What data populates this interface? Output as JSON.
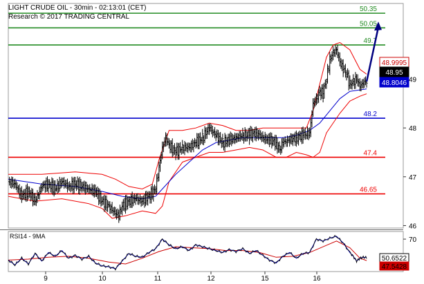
{
  "header": {
    "title": "LIGHT CRUDE OIL - 30min - 02:13:01 (CET)",
    "research": "Research © 2017 TRADING CENTRAL"
  },
  "chart_data": {
    "type": "line",
    "x_ticks": [
      "9",
      "10",
      "11",
      "12",
      "15",
      "16"
    ],
    "price_axis": {
      "ylim": [
        45.95,
        50.55
      ],
      "ticks": [
        "49",
        "48",
        "47",
        "46"
      ]
    },
    "levels": [
      {
        "label": "50.35",
        "value": 50.35,
        "color": "#228b22"
      },
      {
        "label": "50.05",
        "value": 50.05,
        "color": "#228b22"
      },
      {
        "label": "49.7",
        "value": 49.7,
        "color": "#228b22"
      },
      {
        "label": "48.2",
        "value": 48.2,
        "color": "#0000cc"
      },
      {
        "label": "47.4",
        "value": 47.4,
        "color": "#ee0000"
      },
      {
        "label": "46.65",
        "value": 46.65,
        "color": "#ee0000"
      }
    ],
    "price_tags": [
      {
        "label": "48.9995",
        "value": 48.9995,
        "bg": "#ffffff",
        "fg": "#cc0000",
        "border": "#cc0000"
      },
      {
        "label": "48.95",
        "value": 48.95,
        "bg": "#000000",
        "fg": "#ffffff",
        "border": "#000000"
      },
      {
        "label": "48.8046",
        "value": 48.8046,
        "bg": "#0000cc",
        "fg": "#ffffff",
        "border": "#0000cc"
      }
    ],
    "price_series": [
      [
        0,
        46.9
      ],
      [
        4,
        46.85
      ],
      [
        8,
        46.6
      ],
      [
        12,
        46.7
      ],
      [
        16,
        46.5
      ],
      [
        20,
        46.8
      ],
      [
        24,
        46.85
      ],
      [
        28,
        46.75
      ],
      [
        32,
        46.9
      ],
      [
        36,
        46.8
      ],
      [
        40,
        46.85
      ],
      [
        44,
        46.8
      ],
      [
        48,
        46.75
      ],
      [
        52,
        46.7
      ],
      [
        56,
        46.5
      ],
      [
        60,
        46.4
      ],
      [
        64,
        46.25
      ],
      [
        66,
        46.2
      ],
      [
        68,
        46.4
      ],
      [
        72,
        46.5
      ],
      [
        76,
        46.55
      ],
      [
        80,
        46.5
      ],
      [
        84,
        46.6
      ],
      [
        88,
        46.75
      ],
      [
        90,
        47.2
      ],
      [
        92,
        47.6
      ],
      [
        94,
        47.8
      ],
      [
        96,
        47.65
      ],
      [
        100,
        47.5
      ],
      [
        104,
        47.6
      ],
      [
        108,
        47.6
      ],
      [
        112,
        47.7
      ],
      [
        116,
        47.8
      ],
      [
        120,
        48.0
      ],
      [
        124,
        47.85
      ],
      [
        128,
        47.7
      ],
      [
        132,
        47.75
      ],
      [
        136,
        47.8
      ],
      [
        140,
        47.85
      ],
      [
        144,
        47.85
      ],
      [
        148,
        47.9
      ],
      [
        152,
        47.8
      ],
      [
        156,
        47.75
      ],
      [
        160,
        47.7
      ],
      [
        162,
        47.55
      ],
      [
        164,
        47.7
      ],
      [
        168,
        47.75
      ],
      [
        172,
        47.8
      ],
      [
        176,
        47.85
      ],
      [
        180,
        47.9
      ],
      [
        182,
        48.5
      ],
      [
        184,
        48.6
      ],
      [
        186,
        48.75
      ],
      [
        188,
        48.7
      ],
      [
        190,
        49.0
      ],
      [
        192,
        49.4
      ],
      [
        194,
        49.55
      ],
      [
        196,
        49.6
      ],
      [
        198,
        49.35
      ],
      [
        200,
        49.2
      ],
      [
        202,
        49.1
      ],
      [
        204,
        48.9
      ],
      [
        206,
        48.95
      ],
      [
        208,
        49.0
      ],
      [
        210,
        48.85
      ],
      [
        212,
        48.92
      ],
      [
        214,
        48.95
      ]
    ],
    "moving_average": [
      [
        0,
        46.95
      ],
      [
        20,
        46.85
      ],
      [
        40,
        46.8
      ],
      [
        56,
        46.7
      ],
      [
        68,
        46.6
      ],
      [
        80,
        46.55
      ],
      [
        88,
        46.6
      ],
      [
        92,
        46.75
      ],
      [
        100,
        47.05
      ],
      [
        108,
        47.3
      ],
      [
        116,
        47.55
      ],
      [
        124,
        47.7
      ],
      [
        132,
        47.75
      ],
      [
        140,
        47.8
      ],
      [
        148,
        47.8
      ],
      [
        156,
        47.8
      ],
      [
        164,
        47.8
      ],
      [
        172,
        47.85
      ],
      [
        180,
        47.95
      ],
      [
        186,
        48.1
      ],
      [
        192,
        48.35
      ],
      [
        198,
        48.6
      ],
      [
        204,
        48.75
      ],
      [
        210,
        48.78
      ],
      [
        214,
        48.8
      ]
    ],
    "bollinger_upper": [
      [
        0,
        47.05
      ],
      [
        20,
        47.05
      ],
      [
        40,
        47.1
      ],
      [
        56,
        47.05
      ],
      [
        64,
        46.95
      ],
      [
        72,
        46.8
      ],
      [
        80,
        46.75
      ],
      [
        86,
        46.85
      ],
      [
        90,
        47.35
      ],
      [
        96,
        47.95
      ],
      [
        104,
        47.95
      ],
      [
        112,
        48.0
      ],
      [
        120,
        48.1
      ],
      [
        128,
        48.05
      ],
      [
        136,
        47.95
      ],
      [
        144,
        47.95
      ],
      [
        152,
        48.0
      ],
      [
        160,
        48.0
      ],
      [
        170,
        48.0
      ],
      [
        178,
        48.0
      ],
      [
        182,
        48.35
      ],
      [
        186,
        48.9
      ],
      [
        190,
        49.45
      ],
      [
        194,
        49.7
      ],
      [
        198,
        49.75
      ],
      [
        204,
        49.6
      ],
      [
        210,
        49.2
      ],
      [
        214,
        49.1
      ]
    ],
    "bollinger_lower": [
      [
        0,
        46.6
      ],
      [
        16,
        46.5
      ],
      [
        32,
        46.55
      ],
      [
        48,
        46.45
      ],
      [
        56,
        46.35
      ],
      [
        62,
        46.15
      ],
      [
        70,
        46.2
      ],
      [
        80,
        46.3
      ],
      [
        88,
        46.25
      ],
      [
        92,
        46.4
      ],
      [
        96,
        46.9
      ],
      [
        104,
        47.3
      ],
      [
        112,
        47.4
      ],
      [
        120,
        47.5
      ],
      [
        128,
        47.5
      ],
      [
        136,
        47.55
      ],
      [
        144,
        47.6
      ],
      [
        152,
        47.55
      ],
      [
        160,
        47.4
      ],
      [
        166,
        47.4
      ],
      [
        172,
        47.5
      ],
      [
        178,
        47.45
      ],
      [
        182,
        47.4
      ],
      [
        186,
        47.5
      ],
      [
        190,
        47.9
      ],
      [
        194,
        48.1
      ],
      [
        198,
        48.3
      ],
      [
        204,
        48.55
      ],
      [
        210,
        48.65
      ],
      [
        214,
        48.7
      ]
    ],
    "forecast_arrow": {
      "from": [
        214,
        48.95
      ],
      "to": [
        221,
        50.15
      ]
    },
    "rsi": {
      "title": "RSI14 - 9MA",
      "ylim": [
        36,
        78
      ],
      "ticks": [
        "70"
      ],
      "tags": [
        {
          "label": "50.6522",
          "value": 50.6522,
          "bg": "#ffffff",
          "fg": "#000000",
          "border": "#000000"
        },
        {
          "label": "47.5428",
          "value": 47.5428,
          "bg": "#cc0000",
          "fg": "#000000",
          "border": "#cc0000"
        }
      ],
      "rsi_series": [
        [
          0,
          48
        ],
        [
          4,
          43
        ],
        [
          8,
          50
        ],
        [
          12,
          44
        ],
        [
          16,
          55
        ],
        [
          20,
          47
        ],
        [
          24,
          56
        ],
        [
          28,
          52
        ],
        [
          32,
          58
        ],
        [
          36,
          50
        ],
        [
          40,
          53
        ],
        [
          44,
          49
        ],
        [
          48,
          52
        ],
        [
          52,
          45
        ],
        [
          56,
          42
        ],
        [
          60,
          41
        ],
        [
          64,
          39
        ],
        [
          68,
          47
        ],
        [
          72,
          55
        ],
        [
          76,
          52
        ],
        [
          80,
          51
        ],
        [
          84,
          56
        ],
        [
          88,
          60
        ],
        [
          92,
          70
        ],
        [
          96,
          64
        ],
        [
          100,
          60
        ],
        [
          104,
          62
        ],
        [
          108,
          58
        ],
        [
          112,
          64
        ],
        [
          116,
          62
        ],
        [
          120,
          60
        ],
        [
          124,
          58
        ],
        [
          128,
          56
        ],
        [
          132,
          59
        ],
        [
          136,
          57
        ],
        [
          140,
          60
        ],
        [
          144,
          55
        ],
        [
          148,
          58
        ],
        [
          152,
          53
        ],
        [
          156,
          48
        ],
        [
          160,
          45
        ],
        [
          164,
          52
        ],
        [
          168,
          56
        ],
        [
          172,
          50
        ],
        [
          176,
          55
        ],
        [
          180,
          56
        ],
        [
          184,
          70
        ],
        [
          188,
          68
        ],
        [
          192,
          71
        ],
        [
          196,
          73
        ],
        [
          200,
          66
        ],
        [
          204,
          56
        ],
        [
          206,
          52
        ],
        [
          208,
          47
        ],
        [
          210,
          50
        ],
        [
          212,
          51
        ],
        [
          214,
          50.6
        ]
      ],
      "ma_series": [
        [
          0,
          48
        ],
        [
          12,
          49
        ],
        [
          24,
          51
        ],
        [
          36,
          52
        ],
        [
          48,
          50
        ],
        [
          60,
          46
        ],
        [
          70,
          44
        ],
        [
          80,
          50
        ],
        [
          90,
          57
        ],
        [
          100,
          62
        ],
        [
          110,
          61
        ],
        [
          120,
          60
        ],
        [
          130,
          58
        ],
        [
          140,
          58
        ],
        [
          150,
          56
        ],
        [
          160,
          51
        ],
        [
          170,
          52
        ],
        [
          180,
          56
        ],
        [
          188,
          62
        ],
        [
          196,
          68
        ],
        [
          204,
          61
        ],
        [
          210,
          50
        ],
        [
          214,
          47.5
        ]
      ]
    }
  }
}
